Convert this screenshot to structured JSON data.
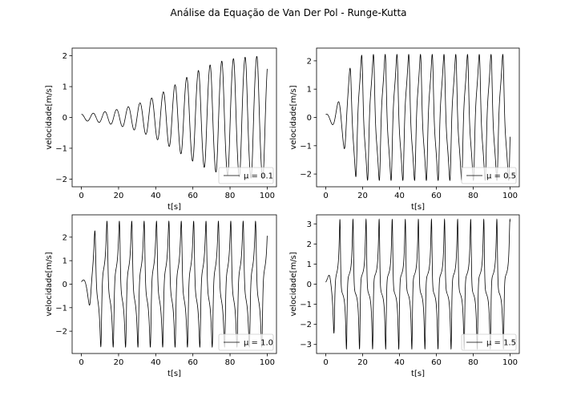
{
  "figure": {
    "title": "Análise da Equação de Van Der Pol - Runge-Kutta"
  },
  "chart_data": [
    {
      "type": "line",
      "mu": 0.1,
      "legend_label": "μ = 0.1",
      "legend_loc": "lower right",
      "xlabel": "t[s]",
      "ylabel": "velocidade[m/s]",
      "xlim": [
        -5,
        105
      ],
      "ylim": [
        -2.25,
        2.25
      ],
      "xticks": [
        0,
        20,
        40,
        60,
        80,
        100
      ],
      "yticks": [
        -2,
        -1,
        0,
        1,
        2
      ],
      "x_range": [
        0,
        100
      ],
      "initial_velocity": 0.1,
      "line_color": "#000000"
    },
    {
      "type": "line",
      "mu": 0.5,
      "legend_label": "μ = 0.5",
      "legend_loc": "lower right",
      "xlabel": "t[s]",
      "ylabel": "velocidade[m/s]",
      "xlim": [
        -5,
        105
      ],
      "ylim": [
        -2.45,
        2.45
      ],
      "xticks": [
        0,
        20,
        40,
        60,
        80,
        100
      ],
      "yticks": [
        -2,
        -1,
        0,
        1,
        2
      ],
      "x_range": [
        0,
        100
      ],
      "initial_velocity": 0.1,
      "line_color": "#000000"
    },
    {
      "type": "line",
      "mu": 1.0,
      "legend_label": "μ = 1.0",
      "legend_loc": "lower right",
      "xlabel": "t[s]",
      "ylabel": "velocidade[m/s]",
      "xlim": [
        -5,
        105
      ],
      "ylim": [
        -2.95,
        2.95
      ],
      "xticks": [
        0,
        20,
        40,
        60,
        80,
        100
      ],
      "yticks": [
        -2,
        -1,
        0,
        1,
        2
      ],
      "x_range": [
        0,
        100
      ],
      "initial_velocity": 0.1,
      "line_color": "#000000"
    },
    {
      "type": "line",
      "mu": 1.5,
      "legend_label": "μ = 1.5",
      "legend_loc": "lower right",
      "xlabel": "t[s]",
      "ylabel": "velocidade[m/s]",
      "xlim": [
        -5,
        105
      ],
      "ylim": [
        -3.45,
        3.45
      ],
      "xticks": [
        0,
        20,
        40,
        60,
        80,
        100
      ],
      "yticks": [
        -3,
        -2,
        -1,
        0,
        1,
        2,
        3
      ],
      "x_range": [
        0,
        100
      ],
      "initial_velocity": 0.1,
      "line_color": "#000000"
    }
  ]
}
